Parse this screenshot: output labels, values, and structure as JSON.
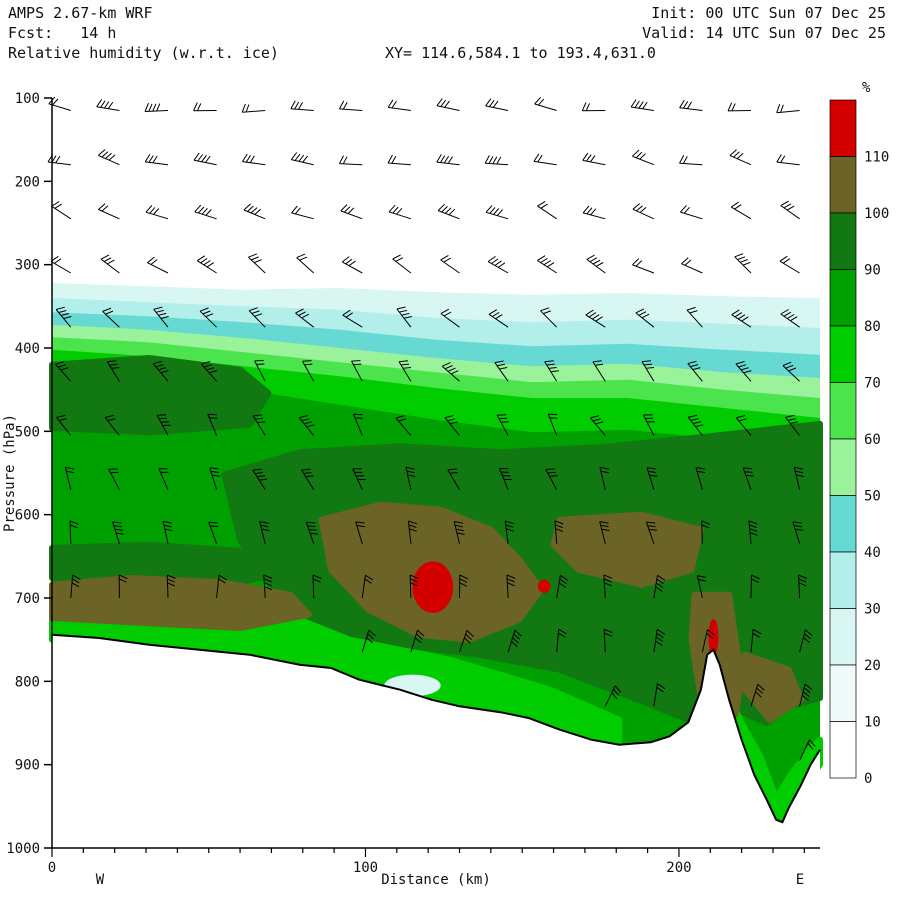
{
  "header": {
    "model": "AMPS 2.67-km WRF",
    "fcst": "Fcst:   14 h",
    "field": "Relative humidity (w.r.t. ice)",
    "init": "Init: 00 UTC Sun 07 Dec 25",
    "valid": "Valid: 14 UTC Sun 07 Dec 25",
    "xy": "XY= 114.6,584.1 to 193.4,631.0"
  },
  "chart_data": {
    "type": "heatmap",
    "subtype": "vertical cross-section, filled RH contours with wind barbs",
    "title": "Relative humidity (w.r.t. ice)",
    "xlabel": "Distance (km)",
    "ylabel": "Pressure (hPa)",
    "x_ticks": [
      0,
      100,
      200
    ],
    "x_minor_tick_step_km": 10,
    "x_range_km": [
      0,
      245
    ],
    "y_ticks_hpa": [
      100,
      200,
      300,
      400,
      500,
      600,
      700,
      800,
      900,
      1000
    ],
    "y_range_hpa": [
      100,
      1000
    ],
    "endpoints": {
      "left": "W",
      "right": "E"
    },
    "colorbar": {
      "unit": "%",
      "tick_labels": [
        "110",
        "100",
        "90",
        "80",
        "70",
        "60",
        "50",
        "40",
        "30",
        "20",
        "10",
        "0"
      ],
      "levels_low_to_high": [
        0,
        10,
        20,
        30,
        40,
        50,
        60,
        70,
        80,
        90,
        100,
        110
      ],
      "band_colors_low_to_high": [
        "#ffffff",
        "#f0fbf9",
        "#d8f6f2",
        "#b2eeea",
        "#66d9d3",
        "#9af29a",
        "#4ce44c",
        "#00cc00",
        "#00a000",
        "#127812",
        "#6b6426",
        "#d40000"
      ]
    },
    "band_top_boundaries": {
      "x_km": [
        0,
        30.6,
        61.2,
        91.9,
        122.5,
        153.1,
        183.7,
        214.4,
        245
      ],
      "levels": [
        {
          "rh": 20,
          "p_hpa": [
            322,
            326,
            330,
            328,
            333,
            336,
            334,
            338,
            340
          ]
        },
        {
          "rh": 30,
          "p_hpa": [
            340,
            345,
            350,
            354,
            364,
            369,
            366,
            371,
            376
          ]
        },
        {
          "rh": 40,
          "p_hpa": [
            357,
            362,
            369,
            378,
            390,
            398,
            395,
            402,
            408
          ]
        },
        {
          "rh": 50,
          "p_hpa": [
            372,
            378,
            388,
            400,
            412,
            422,
            419,
            429,
            436
          ]
        },
        {
          "rh": 60,
          "p_hpa": [
            387,
            393,
            405,
            417,
            429,
            441,
            438,
            450,
            460
          ]
        },
        {
          "rh": 70,
          "p_hpa": [
            402,
            410,
            422,
            434,
            448,
            460,
            460,
            472,
            484
          ]
        },
        {
          "rh": 80,
          "p_hpa": [
            420,
            432,
            450,
            468,
            486,
            501,
            498,
            510,
            525
          ]
        }
      ]
    },
    "regions": [
      {
        "ci": 9,
        "pts": [
          [
            0,
            420
          ],
          [
            31,
            412
          ],
          [
            60,
            426
          ],
          [
            69,
            454
          ],
          [
            63,
            492
          ],
          [
            31,
            501
          ],
          [
            0,
            496
          ]
        ]
      },
      {
        "ci": 9,
        "pts": [
          [
            55,
            552
          ],
          [
            79,
            525
          ],
          [
            111,
            518
          ],
          [
            143,
            525
          ],
          [
            175,
            519
          ],
          [
            207,
            507
          ],
          [
            245,
            491
          ],
          [
            245,
            820
          ],
          [
            235,
            830
          ],
          [
            228,
            850
          ],
          [
            222,
            840
          ],
          [
            217,
            830
          ],
          [
            213,
            780
          ],
          [
            209,
            765
          ],
          [
            206,
            800
          ],
          [
            203,
            846
          ],
          [
            187,
            822
          ],
          [
            162,
            786
          ],
          [
            136,
            768
          ],
          [
            111,
            756
          ],
          [
            89,
            738
          ],
          [
            73,
            702
          ],
          [
            60,
            630
          ]
        ]
      },
      {
        "ci": 9,
        "pts": [
          [
            0,
            640
          ],
          [
            31,
            636
          ],
          [
            66,
            645
          ],
          [
            79,
            666
          ],
          [
            60,
            681
          ],
          [
            25,
            678
          ],
          [
            0,
            676
          ]
        ]
      },
      {
        "ci": 7,
        "pts": [
          [
            0,
            702
          ],
          [
            31,
            700
          ],
          [
            63,
            702
          ],
          [
            95,
            750
          ],
          [
            127,
            774
          ],
          [
            159,
            810
          ],
          [
            181,
            846
          ],
          [
            181,
            886
          ],
          [
            159,
            868
          ],
          [
            127,
            838
          ],
          [
            95,
            802
          ],
          [
            63,
            775
          ],
          [
            31,
            762
          ],
          [
            0,
            750
          ]
        ]
      },
      {
        "ci": 7,
        "pts": [
          [
            214,
            800
          ],
          [
            220,
            850
          ],
          [
            226,
            890
          ],
          [
            231,
            940
          ],
          [
            236,
            910
          ],
          [
            242,
            880
          ],
          [
            245,
            870
          ],
          [
            245,
            900
          ],
          [
            232,
            969
          ],
          [
            224,
            912
          ],
          [
            218,
            845
          ]
        ]
      },
      {
        "ci": 10,
        "pts": [
          [
            0,
            684
          ],
          [
            25,
            676
          ],
          [
            54,
            681
          ],
          [
            76,
            696
          ],
          [
            82,
            720
          ],
          [
            60,
            736
          ],
          [
            25,
            729
          ],
          [
            0,
            724
          ]
        ]
      },
      {
        "ci": 10,
        "pts": [
          [
            86,
            606
          ],
          [
            105,
            588
          ],
          [
            124,
            594
          ],
          [
            140,
            618
          ],
          [
            149,
            654
          ],
          [
            156,
            690
          ],
          [
            149,
            726
          ],
          [
            133,
            750
          ],
          [
            117,
            744
          ],
          [
            101,
            714
          ],
          [
            89,
            666
          ]
        ]
      },
      {
        "ci": 10,
        "pts": [
          [
            160,
            636
          ],
          [
            162,
            606
          ],
          [
            188,
            600
          ],
          [
            207,
            618
          ],
          [
            204,
            666
          ],
          [
            188,
            684
          ],
          [
            168,
            666
          ]
        ]
      },
      {
        "ci": 10,
        "pts": [
          [
            205,
            696
          ],
          [
            216,
            696
          ],
          [
            220,
            798
          ],
          [
            218,
            840
          ],
          [
            207,
            822
          ],
          [
            204,
            750
          ]
        ]
      },
      {
        "ci": 10,
        "pts": [
          [
            221,
            768
          ],
          [
            235,
            786
          ],
          [
            239,
            822
          ],
          [
            229,
            846
          ],
          [
            221,
            810
          ]
        ]
      }
    ],
    "ellipses": [
      {
        "km": 115,
        "p_hpa": 805,
        "rx_km": 9,
        "ry_hpa": 13,
        "ci": 2
      },
      {
        "km": 121.5,
        "p_hpa": 687,
        "rx_km": 6.5,
        "ry_hpa": 31,
        "ci": 11
      },
      {
        "km": 157,
        "p_hpa": 686,
        "rx_km": 2,
        "ry_hpa": 8,
        "ci": 11
      },
      {
        "km": 211,
        "p_hpa": 747,
        "rx_km": 1.6,
        "ry_hpa": 22,
        "ci": 11
      }
    ],
    "rh_maxima_gt_110pct": [
      {
        "km": 121.5,
        "p_hpa": 687
      },
      {
        "km": 157,
        "p_hpa": 686
      },
      {
        "km": 211,
        "p_hpa": 747
      }
    ],
    "terrain_profile_km_hpa": [
      [
        0,
        744
      ],
      [
        15,
        748
      ],
      [
        31,
        756
      ],
      [
        47,
        762
      ],
      [
        63,
        768
      ],
      [
        79,
        780
      ],
      [
        89,
        784
      ],
      [
        98,
        798
      ],
      [
        111,
        810
      ],
      [
        121,
        822
      ],
      [
        130,
        830
      ],
      [
        143,
        837
      ],
      [
        152,
        844
      ],
      [
        162,
        858
      ],
      [
        172,
        870
      ],
      [
        181,
        876
      ],
      [
        191,
        873
      ],
      [
        197,
        866
      ],
      [
        203,
        849
      ],
      [
        207,
        810
      ],
      [
        209,
        768
      ],
      [
        211,
        762
      ],
      [
        213,
        780
      ],
      [
        216,
        822
      ],
      [
        220,
        870
      ],
      [
        224,
        912
      ],
      [
        228,
        942
      ],
      [
        231,
        966
      ],
      [
        233,
        969
      ],
      [
        235,
        952
      ],
      [
        239,
        924
      ],
      [
        242,
        900
      ],
      [
        245,
        882
      ]
    ],
    "wind_barbs": {
      "cols": 16,
      "rows": 14,
      "first_km": 6,
      "step_km": 15.5,
      "first_hpa": 115,
      "step_hpa": 65,
      "note": "barbs nearly horizontal aloft, turning vertical near the surface"
    }
  }
}
